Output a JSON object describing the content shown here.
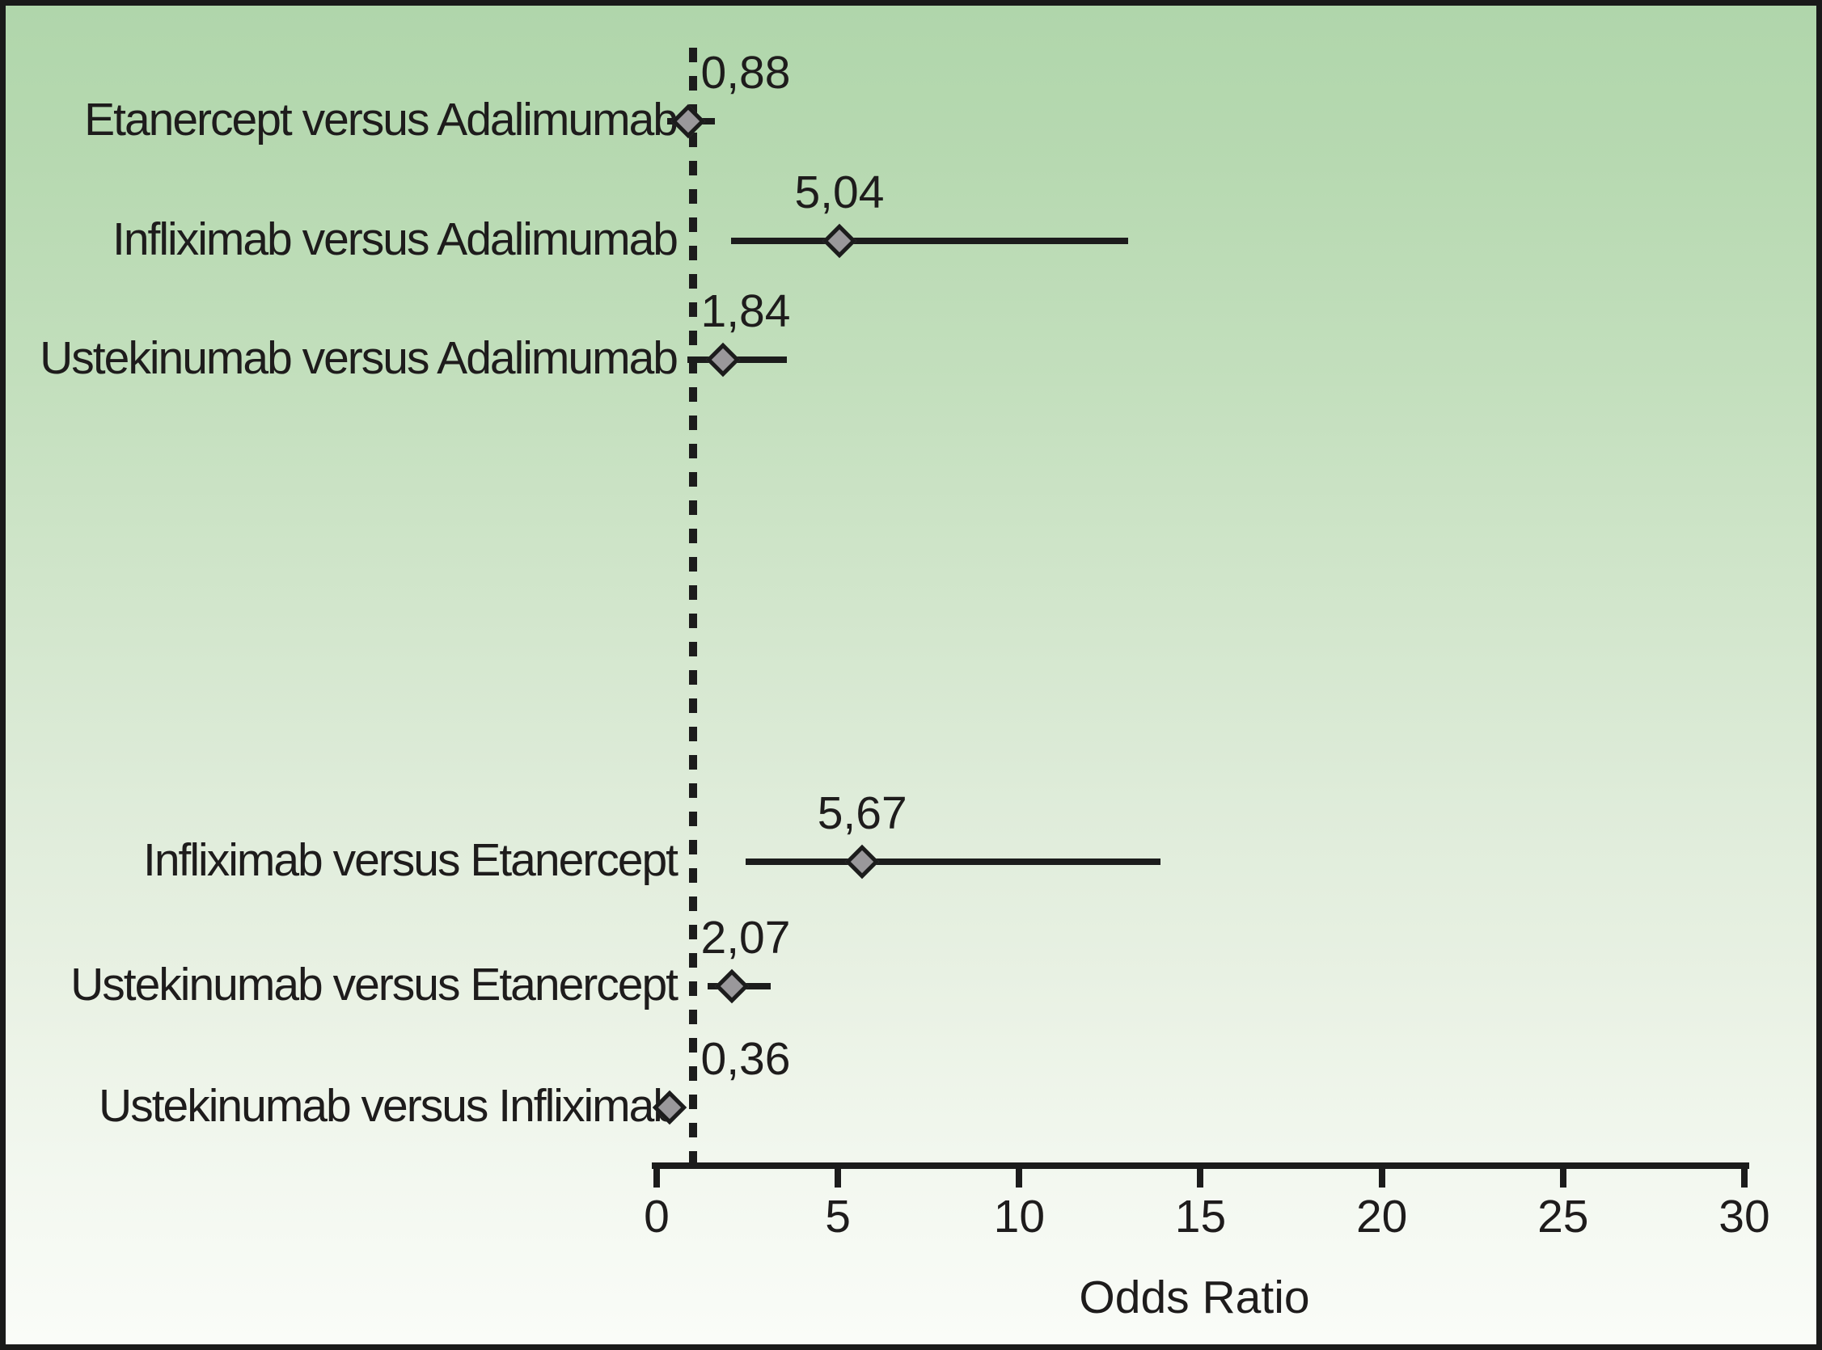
{
  "chart_data": {
    "type": "scatter",
    "variant": "forest-plot",
    "title": "",
    "xlabel": "Odds Ratio",
    "xlim": [
      0,
      30
    ],
    "x_ticks": [
      0,
      5,
      10,
      15,
      20,
      25,
      30
    ],
    "grid": false,
    "legend": false,
    "reference_line": {
      "value": 1,
      "style": "dashed",
      "color": "#1c1c1c"
    },
    "decimal_separator": "comma",
    "ci_values_estimated_from_pixels": true,
    "comparisons": [
      {
        "label": "Etanercept versus Adalimumab",
        "odds_ratio": 0.88,
        "or_label": "0,88",
        "ci_lower": 0.3,
        "ci_upper": 1.6,
        "group": 1
      },
      {
        "label": "Infliximab versus Adalimumab",
        "odds_ratio": 5.04,
        "or_label": "5,04",
        "ci_lower": 2.05,
        "ci_upper": 13.0,
        "group": 1
      },
      {
        "label": "Ustekinumab versus Adalimumab",
        "odds_ratio": 1.84,
        "or_label": "1,84",
        "ci_lower": 0.85,
        "ci_upper": 3.6,
        "group": 1
      },
      {
        "label": "Infliximab versus Etanercept",
        "odds_ratio": 5.67,
        "or_label": "5,67",
        "ci_lower": 2.45,
        "ci_upper": 13.9,
        "group": 2
      },
      {
        "label": "Ustekinumab versus Etanercept",
        "odds_ratio": 2.07,
        "or_label": "2,07",
        "ci_lower": 1.4,
        "ci_upper": 3.15,
        "group": 2
      },
      {
        "label": "Ustekinumab versus Infliximab",
        "odds_ratio": 0.36,
        "or_label": "0,36",
        "ci_lower": 0.25,
        "ci_upper": 0.5,
        "group": 2
      }
    ],
    "colors": {
      "background_top": "#b0d6ab",
      "background_bottom": "#fafcf8",
      "marker_fill": "#9a989b",
      "marker_border": "#1c1c1c",
      "line": "#1c1c1c",
      "text": "#1e1c1c",
      "frame_border": "#1a1a1a"
    }
  }
}
